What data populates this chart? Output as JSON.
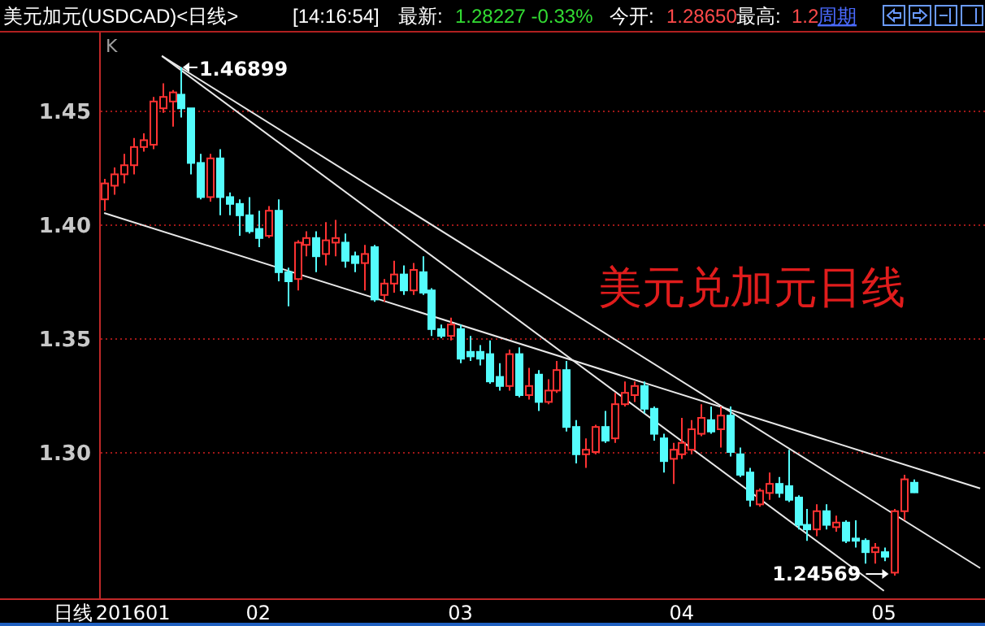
{
  "chart_data": {
    "type": "candlestick",
    "title": "美元加元(USDCAD)<日线>",
    "categories": [
      null,
      null,
      null,
      "201601",
      null,
      null,
      null,
      null,
      null,
      null,
      null,
      null,
      null,
      null,
      null,
      null,
      "02",
      null,
      null,
      null,
      null,
      null,
      null,
      null,
      null,
      null,
      null,
      null,
      null,
      null,
      null,
      null,
      null,
      null,
      null,
      null,
      null,
      "03",
      null,
      null,
      null,
      null,
      null,
      null,
      null,
      null,
      null,
      null,
      null,
      null,
      null,
      null,
      null,
      null,
      null,
      null,
      null,
      null,
      null,
      null,
      "04",
      null,
      null,
      null,
      null,
      null,
      null,
      null,
      null,
      null,
      null,
      null,
      null,
      null,
      null,
      null,
      null,
      null,
      null,
      null,
      null,
      "05",
      null,
      null,
      null,
      null,
      null,
      null,
      null,
      null,
      null,
      null
    ],
    "ohlc": [
      [
        1.411,
        1.42,
        1.406,
        1.418
      ],
      [
        1.417,
        1.425,
        1.413,
        1.422
      ],
      [
        1.422,
        1.431,
        1.418,
        1.426
      ],
      [
        1.426,
        1.438,
        1.422,
        1.434
      ],
      [
        1.434,
        1.44,
        1.432,
        1.437
      ],
      [
        1.435,
        1.456,
        1.433,
        1.454
      ],
      [
        1.451,
        1.462,
        1.449,
        1.456
      ],
      [
        1.454,
        1.459,
        1.443,
        1.458
      ],
      [
        1.457,
        1.46899,
        1.447,
        1.451
      ],
      [
        1.451,
        1.451,
        1.422,
        1.427
      ],
      [
        1.427,
        1.431,
        1.411,
        1.412
      ],
      [
        1.412,
        1.431,
        1.41,
        1.429
      ],
      [
        1.429,
        1.433,
        1.404,
        1.412
      ],
      [
        1.412,
        1.414,
        1.404,
        1.409
      ],
      [
        1.409,
        1.411,
        1.395,
        1.404
      ],
      [
        1.404,
        1.412,
        1.396,
        1.397
      ],
      [
        1.398,
        1.406,
        1.39,
        1.394
      ],
      [
        1.395,
        1.408,
        1.394,
        1.406
      ],
      [
        1.406,
        1.411,
        1.375,
        1.379
      ],
      [
        1.379,
        1.381,
        1.364,
        1.375
      ],
      [
        1.376,
        1.393,
        1.371,
        1.392
      ],
      [
        1.391,
        1.397,
        1.386,
        1.394
      ],
      [
        1.394,
        1.397,
        1.379,
        1.386
      ],
      [
        1.387,
        1.401,
        1.382,
        1.393
      ],
      [
        1.392,
        1.402,
        1.386,
        1.394
      ],
      [
        1.392,
        1.396,
        1.381,
        1.384
      ],
      [
        1.386,
        1.388,
        1.379,
        1.383
      ],
      [
        1.383,
        1.391,
        1.371,
        1.387
      ],
      [
        1.39,
        1.391,
        1.366,
        1.367
      ],
      [
        1.369,
        1.376,
        1.366,
        1.374
      ],
      [
        1.374,
        1.384,
        1.37,
        1.378
      ],
      [
        1.378,
        1.382,
        1.369,
        1.371
      ],
      [
        1.371,
        1.383,
        1.369,
        1.38
      ],
      [
        1.379,
        1.386,
        1.369,
        1.37
      ],
      [
        1.371,
        1.372,
        1.351,
        1.354
      ],
      [
        1.354,
        1.356,
        1.35,
        1.351
      ],
      [
        1.351,
        1.359,
        1.349,
        1.356
      ],
      [
        1.354,
        1.356,
        1.339,
        1.341
      ],
      [
        1.344,
        1.351,
        1.34,
        1.342
      ],
      [
        1.344,
        1.347,
        1.338,
        1.341
      ],
      [
        1.343,
        1.349,
        1.33,
        1.331
      ],
      [
        1.333,
        1.339,
        1.327,
        1.329
      ],
      [
        1.329,
        1.345,
        1.327,
        1.343
      ],
      [
        1.343,
        1.346,
        1.324,
        1.325
      ],
      [
        1.325,
        1.337,
        1.323,
        1.329
      ],
      [
        1.334,
        1.336,
        1.318,
        1.322
      ],
      [
        1.322,
        1.332,
        1.321,
        1.327
      ],
      [
        1.327,
        1.34,
        1.326,
        1.336
      ],
      [
        1.336,
        1.34,
        1.309,
        1.311
      ],
      [
        1.311,
        1.314,
        1.295,
        1.299
      ],
      [
        1.299,
        1.306,
        1.293,
        1.301
      ],
      [
        1.3,
        1.312,
        1.299,
        1.311
      ],
      [
        1.311,
        1.318,
        1.304,
        1.305
      ],
      [
        1.306,
        1.326,
        1.304,
        1.321
      ],
      [
        1.321,
        1.331,
        1.32,
        1.326
      ],
      [
        1.325,
        1.331,
        1.322,
        1.329
      ],
      [
        1.329,
        1.331,
        1.317,
        1.319
      ],
      [
        1.319,
        1.32,
        1.305,
        1.308
      ],
      [
        1.306,
        1.308,
        1.291,
        1.296
      ],
      [
        1.297,
        1.304,
        1.286,
        1.301
      ],
      [
        1.299,
        1.315,
        1.297,
        1.304
      ],
      [
        1.301,
        1.314,
        1.299,
        1.31
      ],
      [
        1.308,
        1.321,
        1.307,
        1.315
      ],
      [
        1.314,
        1.32,
        1.308,
        1.309
      ],
      [
        1.31,
        1.32,
        1.302,
        1.316
      ],
      [
        1.316,
        1.32,
        1.298,
        1.3
      ],
      [
        1.299,
        1.302,
        1.289,
        1.29
      ],
      [
        1.291,
        1.293,
        1.276,
        1.279
      ],
      [
        1.277,
        1.284,
        1.276,
        1.283
      ],
      [
        1.282,
        1.291,
        1.279,
        1.286
      ],
      [
        1.286,
        1.289,
        1.28,
        1.282
      ],
      [
        1.285,
        1.301,
        1.278,
        1.279
      ],
      [
        1.28,
        1.281,
        1.266,
        1.268
      ],
      [
        1.268,
        1.275,
        1.261,
        1.266
      ],
      [
        1.266,
        1.277,
        1.263,
        1.274
      ],
      [
        1.274,
        1.277,
        1.266,
        1.268
      ],
      [
        1.267,
        1.272,
        1.265,
        1.269
      ],
      [
        1.269,
        1.27,
        1.26,
        1.261
      ],
      [
        1.262,
        1.27,
        1.258,
        1.261
      ],
      [
        1.261,
        1.262,
        1.251,
        1.256
      ],
      [
        1.256,
        1.26,
        1.251,
        1.258
      ],
      [
        1.256,
        1.258,
        1.252,
        1.254
      ],
      [
        1.247,
        1.275,
        1.24569,
        1.274
      ],
      [
        1.274,
        1.29,
        1.27,
        1.288
      ],
      [
        1.2865,
        1.2879,
        1.282,
        1.28227
      ],
      null,
      null,
      null,
      null,
      null,
      null,
      null
    ],
    "colors": [
      "#ff3232",
      "#ff3232",
      "#ff3232",
      "#ff3232",
      "#ff3232",
      "#ff3232",
      "#ff3232",
      "#ff3232",
      "#54fcfc",
      "#54fcfc",
      "#54fcfc",
      "#ff3232",
      "#54fcfc",
      "#54fcfc",
      "#54fcfc",
      "#54fcfc",
      "#54fcfc",
      "#ff3232",
      "#54fcfc",
      "#54fcfc",
      "#ff3232",
      "#ff3232",
      "#54fcfc",
      "#ff3232",
      "#ff3232",
      "#54fcfc",
      "#54fcfc",
      "#ff3232",
      "#54fcfc",
      "#ff3232",
      "#ff3232",
      "#54fcfc",
      "#ff3232",
      "#54fcfc",
      "#54fcfc",
      "#54fcfc",
      "#ff3232",
      "#54fcfc",
      "#54fcfc",
      "#54fcfc",
      "#54fcfc",
      "#54fcfc",
      "#ff3232",
      "#54fcfc",
      "#ff3232",
      "#54fcfc",
      "#ff3232",
      "#ff3232",
      "#54fcfc",
      "#54fcfc",
      "#ff3232",
      "#ff3232",
      "#54fcfc",
      "#ff3232",
      "#ff3232",
      "#ff3232",
      "#54fcfc",
      "#54fcfc",
      "#54fcfc",
      "#ff3232",
      "#ff3232",
      "#ff3232",
      "#ff3232",
      "#54fcfc",
      "#ff3232",
      "#54fcfc",
      "#54fcfc",
      "#54fcfc",
      "#ff3232",
      "#ff3232",
      "#54fcfc",
      "#54fcfc",
      "#54fcfc",
      "#54fcfc",
      "#ff3232",
      "#54fcfc",
      "#ff3232",
      "#54fcfc",
      "#54fcfc",
      "#54fcfc",
      "#ff3232",
      "#54fcfc",
      "#ff3232",
      "#ff3232",
      "#54fcfc",
      null,
      null,
      null,
      null,
      null,
      null,
      null
    ],
    "series": [
      {
        "type": "line",
        "color": "#e8e8e8",
        "values": [
          1.405,
          null,
          null,
          null,
          null,
          null,
          null,
          null,
          null,
          null,
          null,
          null,
          null,
          null,
          null,
          null,
          null,
          null,
          null,
          null,
          null,
          null,
          null,
          null,
          null,
          null,
          null,
          null,
          null,
          null,
          null,
          null,
          null,
          null,
          null,
          null,
          null,
          null,
          null,
          null,
          null,
          null,
          null,
          null,
          null,
          null,
          null,
          null,
          null,
          null,
          null,
          null,
          null,
          null,
          null,
          null,
          null,
          null,
          null,
          null,
          null,
          null,
          null,
          null,
          null,
          null,
          null,
          null,
          null,
          null,
          null,
          null,
          null,
          null,
          null,
          null,
          null,
          null,
          null,
          null,
          null,
          null,
          null,
          null,
          null,
          null,
          null,
          null,
          null,
          null,
          null,
          1.284
        ]
      },
      {
        "type": "line",
        "color": "#e8e8e8",
        "values": [
          null,
          null,
          null,
          null,
          null,
          null,
          1.474,
          null,
          null,
          null,
          null,
          null,
          null,
          null,
          null,
          null,
          null,
          null,
          null,
          null,
          null,
          null,
          null,
          null,
          null,
          null,
          null,
          null,
          null,
          null,
          null,
          null,
          null,
          null,
          null,
          null,
          null,
          null,
          null,
          null,
          null,
          null,
          null,
          null,
          null,
          null,
          null,
          null,
          null,
          null,
          null,
          null,
          null,
          null,
          null,
          null,
          null,
          null,
          null,
          null,
          null,
          null,
          null,
          null,
          null,
          null,
          null,
          null,
          null,
          null,
          null,
          null,
          null,
          null,
          null,
          null,
          null,
          null,
          null,
          null,
          null,
          1.239,
          null,
          null,
          null,
          null,
          null,
          null,
          null,
          null,
          null,
          null
        ]
      },
      {
        "type": "line",
        "color": "#e8e8e8",
        "values": [
          null,
          null,
          null,
          null,
          null,
          null,
          1.474,
          null,
          null,
          null,
          null,
          null,
          null,
          null,
          null,
          null,
          null,
          null,
          null,
          null,
          null,
          null,
          null,
          null,
          null,
          null,
          null,
          null,
          null,
          null,
          null,
          null,
          null,
          null,
          null,
          null,
          null,
          null,
          null,
          null,
          null,
          null,
          null,
          null,
          null,
          null,
          null,
          null,
          null,
          null,
          null,
          null,
          null,
          null,
          null,
          null,
          null,
          null,
          null,
          null,
          null,
          null,
          null,
          null,
          null,
          null,
          null,
          null,
          null,
          null,
          null,
          null,
          null,
          null,
          null,
          null,
          null,
          null,
          null,
          null,
          null,
          null,
          null,
          null,
          null,
          null,
          null,
          null,
          null,
          null,
          null,
          1.249
        ]
      }
    ],
    "ylim": [
      1.2357,
      1.4843
    ],
    "yticks": [
      {
        "value": 1.3,
        "label": "1.30"
      },
      {
        "value": 1.35,
        "label": "1.35"
      },
      {
        "value": 1.4,
        "label": "1.40"
      },
      {
        "value": 1.45,
        "label": "1.45"
      }
    ],
    "grid": "y",
    "annotations": [
      "[14:16:54]",
      "最新:",
      "1.28227 -0.33%",
      "今开:",
      "1.28650",
      "最高:",
      "1.2",
      "周期",
      "K",
      "日线",
      "美元兑加元日线",
      "1.46899",
      "1.24569"
    ]
  }
}
